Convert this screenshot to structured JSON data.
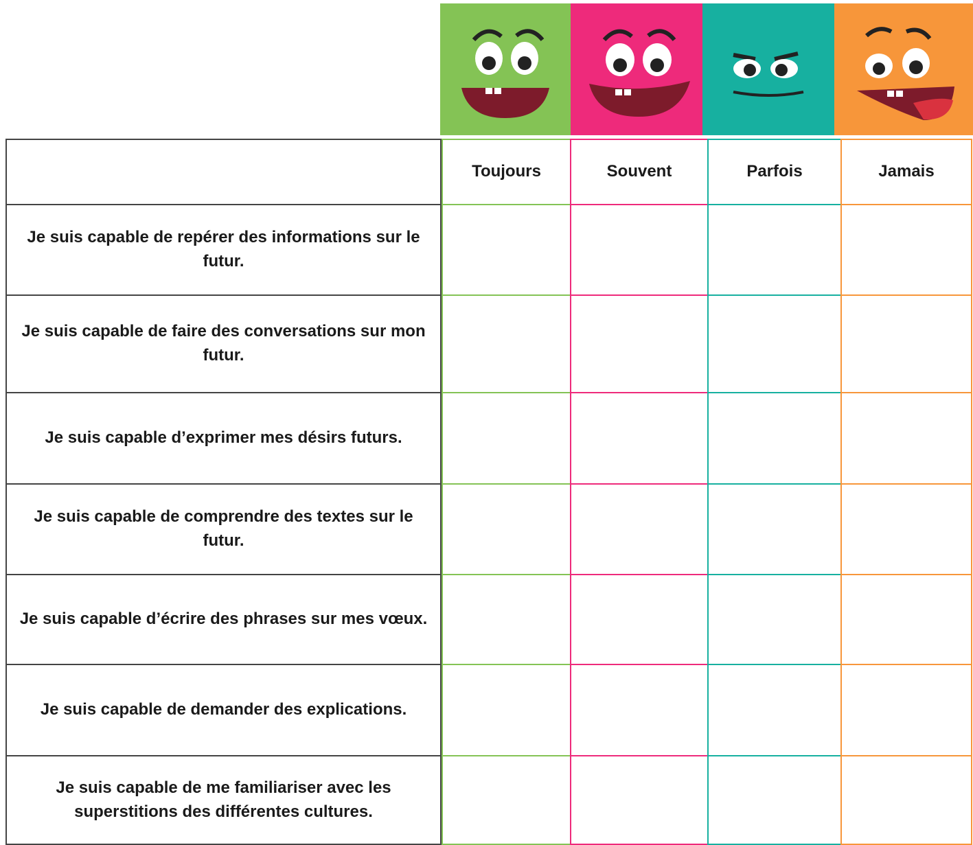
{
  "header": {
    "columns": [
      "Toujours",
      "Souvent",
      "Parfois",
      "Jamais"
    ]
  },
  "table": {
    "rows": [
      "Je suis capable de repérer des informations sur le futur.",
      "Je suis capable de faire des conversations sur mon futur.",
      "Je suis capable d’exprimer mes désirs futurs.",
      "Je suis capable de comprendre des textes sur le futur.",
      "Je suis capable d’écrire des phrases sur mes vœux.",
      "Je suis capable de demander des explications.",
      "Je suis capable de me familiariser avec les superstitions des différentes cultures."
    ]
  }
}
